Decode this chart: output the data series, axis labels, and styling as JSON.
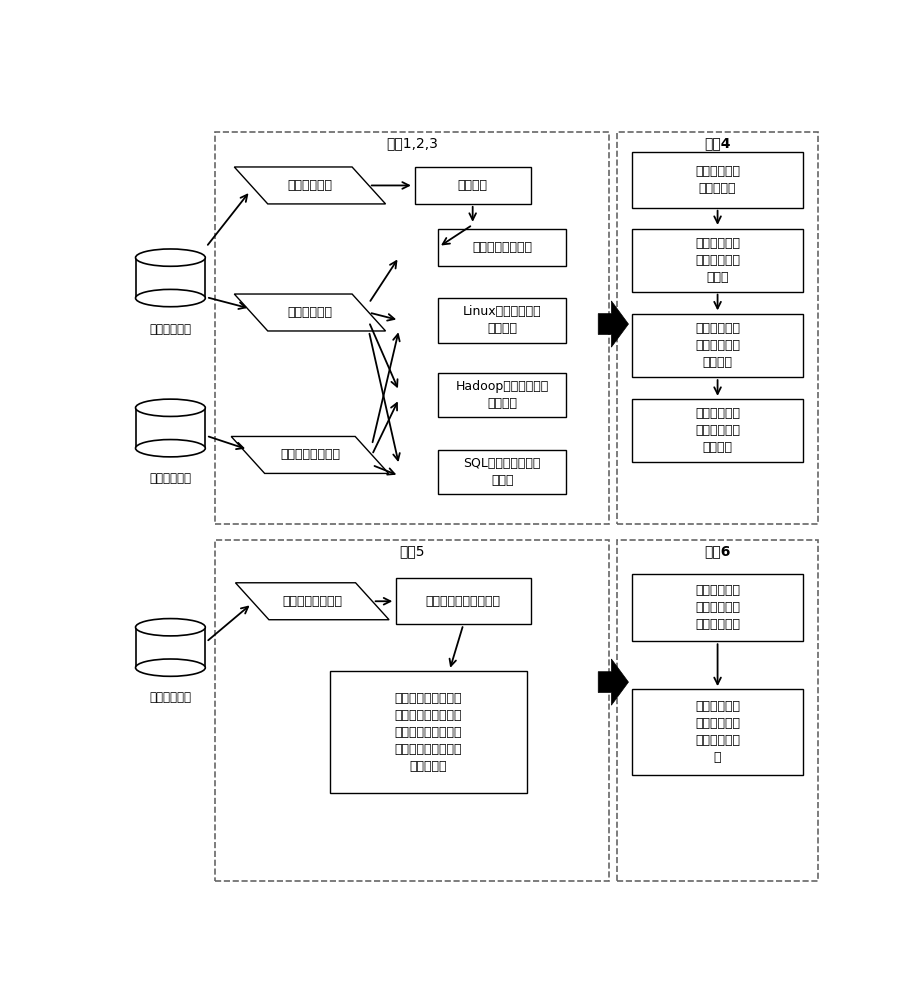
{
  "bg_color": "#ffffff",
  "step123_label": "步骤1,2,3",
  "step4_label": "步骤4",
  "step5_label": "步骤5",
  "step6_label": "步骤6",
  "db1_label": "网络安全设备",
  "db2_label": "用户行为规范",
  "db3_label": "网络安全设备",
  "box_user_perm": "用户权限数据",
  "box_perm_info": "权限信息",
  "box_user_log": "用户日志数据",
  "box_user_cmd": "用户危险指令清单",
  "box_daily_exceed": "单日越权操作频次",
  "box_linux_cmd": "Linux危险指令单日\n使用频次",
  "box_hadoop_cmd": "Hadoop危险指令单日\n使用频次",
  "box_sql_cmd": "SQL危险指令单日使\n用频次",
  "step4_box1": "按特征维度划\n分特征值集",
  "step4_box2": "在各特征值集\n上训练高斯混\n合模型",
  "step4_box3": "对高斯混合模\n型按高斯分量\n进行分级",
  "step4_box4": "储存四个特征\n维度上的高斯\n混合模型",
  "box_today_log": "当日用户日志数据",
  "box_today_feat": "当日用户危险行为特征",
  "box_risk_calc": "将用户危险行为特征\n按不同特征维度输入\n对应高斯混合模型得\n到各用户当日的风险\n分级概率集",
  "step6_box1": "基于概率融合\n概率计算用户\n总体风险概率",
  "step6_box2": "基于总体风险\n概率对高危用\n户进行风险预\n警"
}
